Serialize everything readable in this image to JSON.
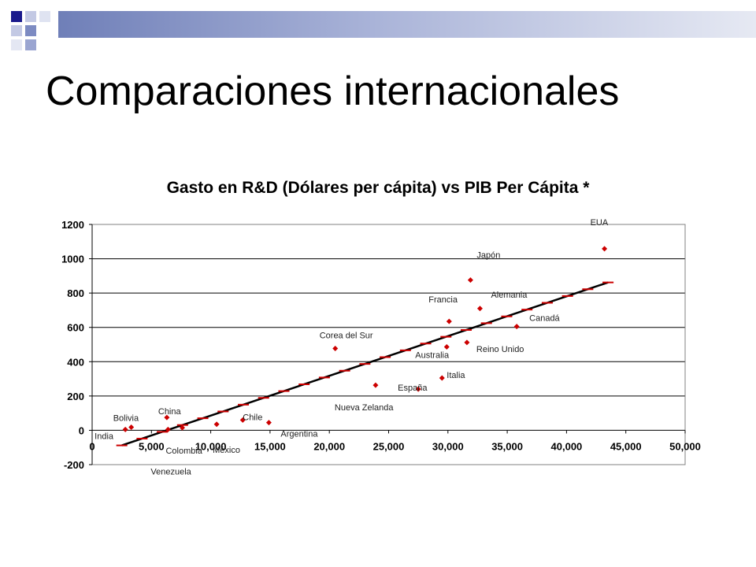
{
  "slide": {
    "title": "Comparaciones internacionales"
  },
  "colors": {
    "marker": "#cc0000",
    "trend": "#000000",
    "accent_dark": "#1a1a8c",
    "accent_mid": "#6f7fb8",
    "accent_light": "#b6bede"
  },
  "chart_data": {
    "type": "scatter",
    "title": "Gasto en R&D (Dólares per cápita) vs PIB Per Cápita *",
    "xlabel": "",
    "ylabel": "",
    "xlim": [
      0,
      50000
    ],
    "ylim": [
      -200,
      1200
    ],
    "x_ticks": [
      0,
      5000,
      10000,
      15000,
      20000,
      25000,
      30000,
      35000,
      40000,
      45000,
      50000
    ],
    "x_tick_labels": [
      "0",
      "5,000",
      "10,000",
      "15,000",
      "20,000",
      "25,000",
      "30,000",
      "35,000",
      "40,000",
      "45,000",
      "50,000"
    ],
    "y_ticks": [
      -200,
      0,
      200,
      400,
      600,
      800,
      1000,
      1200
    ],
    "y_tick_labels": [
      "-200",
      "0",
      "200",
      "400",
      "600",
      "800",
      "1000",
      "1200"
    ],
    "grid": "horizontal",
    "trendline": {
      "x": [
        2500,
        43500
      ],
      "y": [
        -88,
        862
      ]
    },
    "points": [
      {
        "label": "EUA",
        "x": 43200,
        "y": 1058
      },
      {
        "label": "Japón",
        "x": 31900,
        "y": 876
      },
      {
        "label": "Alemania",
        "x": 32700,
        "y": 710
      },
      {
        "label": "Francia",
        "x": 30100,
        "y": 635
      },
      {
        "label": "Canadá",
        "x": 35800,
        "y": 605
      },
      {
        "label": "Reino Unido",
        "x": 31600,
        "y": 512
      },
      {
        "label": "Australia",
        "x": 29900,
        "y": 486
      },
      {
        "label": "Corea del Sur",
        "x": 20500,
        "y": 477
      },
      {
        "label": "Italia",
        "x": 29500,
        "y": 305
      },
      {
        "label": "España",
        "x": 27500,
        "y": 240
      },
      {
        "label": "Nueva Zelanda",
        "x": 23900,
        "y": 263
      },
      {
        "label": "Argentina",
        "x": 14900,
        "y": 45
      },
      {
        "label": "Chile",
        "x": 12700,
        "y": 60
      },
      {
        "label": "México",
        "x": 10500,
        "y": 35
      },
      {
        "label": "Colombia",
        "x": 7600,
        "y": 15
      },
      {
        "label": "Venezuela",
        "x": 6400,
        "y": 5
      },
      {
        "label": "China",
        "x": 6300,
        "y": 75
      },
      {
        "label": "Bolivia",
        "x": 3300,
        "y": 18
      },
      {
        "label": "India",
        "x": 2800,
        "y": 5
      }
    ]
  }
}
